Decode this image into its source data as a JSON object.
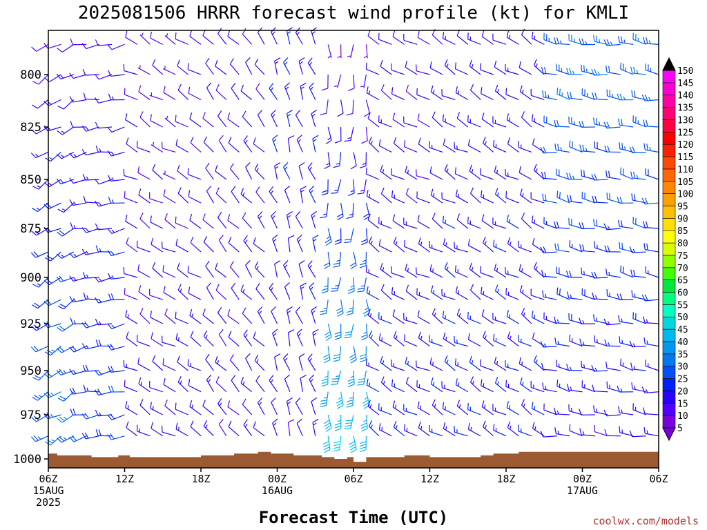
{
  "chart_data": {
    "type": "wind-barb-profile",
    "title": "2025081506 HRRR forecast wind profile (kt) for KMLI",
    "xlabel": "Forecast Time (UTC)",
    "credit": "coolwx.com/models",
    "x_ticks": [
      {
        "hour": 0,
        "l1": "06Z",
        "l2": "15AUG",
        "l3": "2025"
      },
      {
        "hour": 6,
        "l1": "12Z",
        "l2": "",
        "l3": ""
      },
      {
        "hour": 12,
        "l1": "18Z",
        "l2": "",
        "l3": ""
      },
      {
        "hour": 18,
        "l1": "00Z",
        "l2": "16AUG",
        "l3": ""
      },
      {
        "hour": 24,
        "l1": "06Z",
        "l2": "",
        "l3": ""
      },
      {
        "hour": 30,
        "l1": "12Z",
        "l2": "",
        "l3": ""
      },
      {
        "hour": 36,
        "l1": "18Z",
        "l2": "",
        "l3": ""
      },
      {
        "hour": 42,
        "l1": "00Z",
        "l2": "17AUG",
        "l3": ""
      },
      {
        "hour": 48,
        "l1": "06Z",
        "l2": "",
        "l3": ""
      }
    ],
    "xlim": [
      0,
      48
    ],
    "y_ticks": [
      800,
      825,
      850,
      875,
      900,
      925,
      950,
      975,
      1000
    ],
    "ylim": [
      1000,
      778
    ],
    "y_unit": "hPa",
    "colorbar": {
      "levels": [
        5,
        10,
        15,
        20,
        25,
        30,
        35,
        40,
        45,
        50,
        55,
        60,
        65,
        70,
        75,
        80,
        85,
        90,
        95,
        100,
        105,
        110,
        115,
        120,
        125,
        130,
        135,
        140,
        145,
        150
      ],
      "colors": [
        "#7a00e0",
        "#5200ff",
        "#2a00ff",
        "#0020ff",
        "#0050f8",
        "#0078f0",
        "#0098f0",
        "#00b8f0",
        "#00d8e0",
        "#00ffc0",
        "#00ff80",
        "#00e840",
        "#40ff00",
        "#90ff00",
        "#d8ff00",
        "#ffff00",
        "#ffe000",
        "#ffc000",
        "#ffa000",
        "#ff8800",
        "#ff6800",
        "#ff4800",
        "#ff2000",
        "#ff0000",
        "#ff0040",
        "#ff0078",
        "#ff00a8",
        "#ff00d0",
        "#ff00ff",
        "#000000"
      ]
    },
    "terrain_color": "#9c5a32",
    "terrain": [
      [
        0,
        997
      ],
      [
        0.7,
        997
      ],
      [
        0.7,
        998
      ],
      [
        3.4,
        998
      ],
      [
        3.4,
        999
      ],
      [
        5.5,
        999
      ],
      [
        5.5,
        998
      ],
      [
        6.4,
        998
      ],
      [
        6.4,
        999
      ],
      [
        12,
        999
      ],
      [
        12,
        998
      ],
      [
        14.6,
        998
      ],
      [
        14.6,
        997
      ],
      [
        16.5,
        997
      ],
      [
        16.5,
        996
      ],
      [
        17.5,
        996
      ],
      [
        17.5,
        997
      ],
      [
        19.3,
        997
      ],
      [
        19.3,
        998
      ],
      [
        21.5,
        998
      ],
      [
        21.5,
        999
      ],
      [
        22.5,
        999
      ],
      [
        22.5,
        1000
      ],
      [
        23.5,
        1000
      ],
      [
        23.5,
        999
      ],
      [
        24,
        999
      ],
      [
        24,
        1001
      ],
      [
        25,
        1001
      ],
      [
        25,
        999
      ],
      [
        28,
        999
      ],
      [
        28,
        998
      ],
      [
        30,
        998
      ],
      [
        30,
        999
      ],
      [
        34,
        999
      ],
      [
        34,
        998
      ],
      [
        35,
        998
      ],
      [
        35,
        997
      ],
      [
        37,
        997
      ],
      [
        37,
        996
      ],
      [
        48,
        996
      ]
    ],
    "wind_grid": {
      "hours": [
        0,
        1,
        2,
        3,
        4,
        5,
        6,
        7,
        8,
        9,
        10,
        11,
        12,
        13,
        14,
        15,
        16,
        17,
        18,
        19,
        20,
        21,
        22,
        23,
        24,
        25,
        26,
        27,
        28,
        29,
        30,
        31,
        32,
        33,
        34,
        35,
        36,
        37,
        38,
        39,
        40,
        41,
        42,
        43,
        44,
        45,
        46,
        47,
        48
      ],
      "levels": [
        785,
        800,
        812,
        825,
        837,
        850,
        862,
        875,
        887,
        900,
        912,
        925,
        937,
        950,
        962,
        975,
        987
      ],
      "regimes": [
        {
          "x0": 0,
          "x1": 3,
          "dir": 240,
          "spd_top": 10,
          "spd_bot": 25
        },
        {
          "x0": 3,
          "x1": 7,
          "dir": 260,
          "spd_top": 10,
          "spd_bot": 20
        },
        {
          "x0": 7,
          "x1": 13,
          "dir": 300,
          "spd_top": 8,
          "spd_bot": 12
        },
        {
          "x0": 13,
          "x1": 18,
          "dir": 320,
          "spd_top": 10,
          "spd_bot": 12
        },
        {
          "x0": 18,
          "x1": 22,
          "dir": 340,
          "spd_top": 15,
          "spd_bot": 12
        },
        {
          "x0": 22,
          "x1": 26,
          "dir": 180,
          "spd_top": 5,
          "spd_bot": 40
        },
        {
          "x0": 26,
          "x1": 32,
          "dir": 300,
          "spd_top": 10,
          "spd_bot": 15
        },
        {
          "x0": 32,
          "x1": 40,
          "dir": 300,
          "spd_top": 12,
          "spd_bot": 15
        },
        {
          "x0": 40,
          "x1": 48,
          "dir": 280,
          "spd_top": 25,
          "spd_bot": 12
        }
      ]
    }
  }
}
